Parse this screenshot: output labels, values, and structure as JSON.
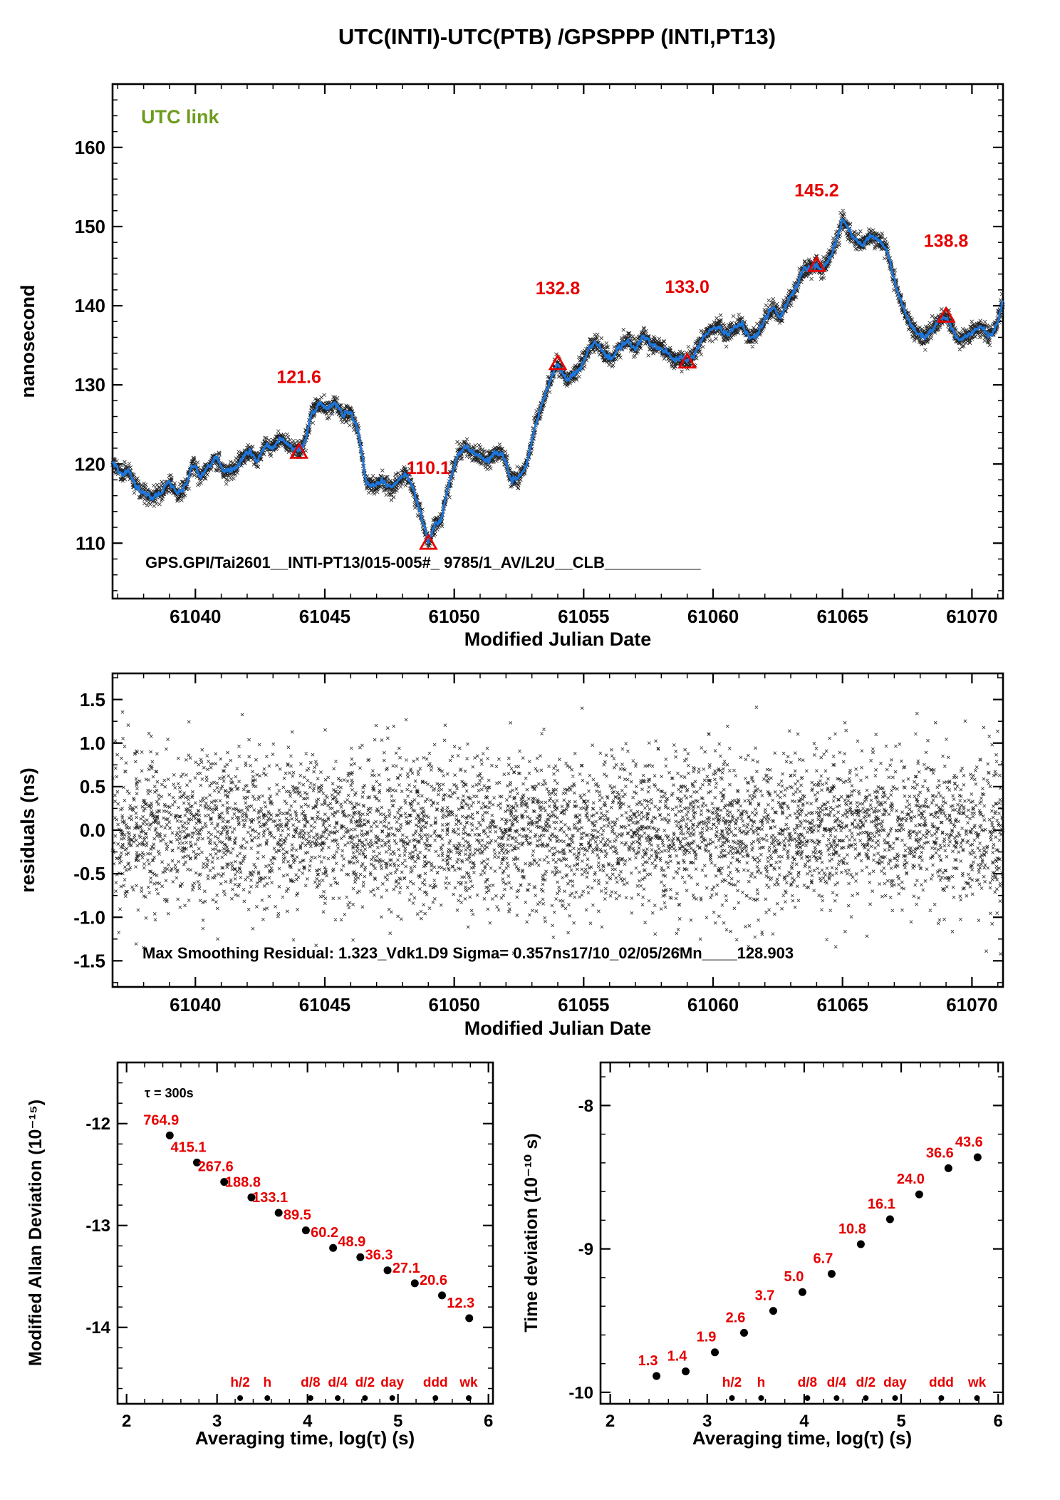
{
  "title": "UTC(INTI)-UTC(PTB)  /GPSPPP  (INTI,PT13)",
  "colors": {
    "line_blue": "#1b76dd",
    "marker_black": "#222222",
    "accent_red": "#e60000",
    "link_green": "#6e9c1f",
    "axis_black": "#000000"
  },
  "chart_data": [
    {
      "id": "utc-link",
      "type": "line",
      "corner_label": "UTC link",
      "ylabel": "nanosecond",
      "xlabel": "Modified Julian Date",
      "bottom_annotation": "GPS.GPI/Tai2601__INTI-PT13/015-005#_  9785/1_AV/L2U__CLB___________",
      "xlim": [
        61036.8,
        61071.2
      ],
      "ylim": [
        103,
        168
      ],
      "xticks": [
        61040,
        61045,
        61050,
        61055,
        61060,
        61065,
        61070
      ],
      "xtick_labels": [
        "61040",
        "61045",
        "61050",
        "61055",
        "61060",
        "61065",
        "61070"
      ],
      "yticks": [
        110,
        120,
        130,
        140,
        150,
        160
      ],
      "ytick_labels": [
        "110",
        "120",
        "130",
        "140",
        "150",
        "160"
      ],
      "calibration_markers": {
        "marker": "open-triangle",
        "color": "#e60000",
        "x": [
          61044,
          61049,
          61054,
          61059,
          61064,
          61069
        ],
        "y": [
          121.6,
          110.1,
          132.8,
          133.0,
          145.2,
          138.8
        ],
        "labels": [
          "121.6",
          "110.1",
          "132.8",
          "133.0",
          "145.2",
          "138.8"
        ]
      },
      "series_anchors": [
        [
          61036.8,
          120.3
        ],
        [
          61037.1,
          118.6
        ],
        [
          61037.4,
          119.3
        ],
        [
          61037.7,
          117.2
        ],
        [
          61038.0,
          116.3
        ],
        [
          61038.3,
          115.7
        ],
        [
          61038.7,
          116.4
        ],
        [
          61039.0,
          117.8
        ],
        [
          61039.3,
          116.2
        ],
        [
          61039.6,
          117.0
        ],
        [
          61039.9,
          120.2
        ],
        [
          61040.2,
          118.4
        ],
        [
          61040.5,
          119.6
        ],
        [
          61040.8,
          120.9
        ],
        [
          61041.1,
          119.0
        ],
        [
          61041.5,
          119.3
        ],
        [
          61041.8,
          120.6
        ],
        [
          61042.1,
          121.7
        ],
        [
          61042.4,
          120.4
        ],
        [
          61042.7,
          122.4
        ],
        [
          61043.0,
          122.0
        ],
        [
          61043.3,
          123.3
        ],
        [
          61043.6,
          122.2
        ],
        [
          61043.9,
          121.9
        ],
        [
          61044.0,
          121.6
        ],
        [
          61044.2,
          122.3
        ],
        [
          61044.5,
          126.5
        ],
        [
          61044.8,
          127.6
        ],
        [
          61045.1,
          127.0
        ],
        [
          61045.4,
          127.7
        ],
        [
          61045.7,
          126.2
        ],
        [
          61046.0,
          126.6
        ],
        [
          61046.3,
          124.0
        ],
        [
          61046.6,
          117.6
        ],
        [
          61046.9,
          117.2
        ],
        [
          61047.2,
          117.9
        ],
        [
          61047.5,
          117.1
        ],
        [
          61047.8,
          117.6
        ],
        [
          61048.1,
          118.9
        ],
        [
          61048.4,
          117.0
        ],
        [
          61048.7,
          113.8
        ],
        [
          61049.0,
          110.1
        ],
        [
          61049.2,
          112.0
        ],
        [
          61049.5,
          113.0
        ],
        [
          61049.8,
          117.5
        ],
        [
          61050.1,
          120.8
        ],
        [
          61050.4,
          122.3
        ],
        [
          61050.7,
          121.4
        ],
        [
          61051.0,
          121.0
        ],
        [
          61051.3,
          120.4
        ],
        [
          61051.6,
          121.6
        ],
        [
          61051.9,
          121.2
        ],
        [
          61052.2,
          117.8
        ],
        [
          61052.5,
          118.3
        ],
        [
          61052.8,
          119.8
        ],
        [
          61053.1,
          124.5
        ],
        [
          61053.5,
          128.6
        ],
        [
          61053.8,
          131.4
        ],
        [
          61054.0,
          132.8
        ],
        [
          61054.3,
          130.6
        ],
        [
          61054.6,
          131.2
        ],
        [
          61054.9,
          132.4
        ],
        [
          61055.2,
          134.6
        ],
        [
          61055.5,
          135.4
        ],
        [
          61055.8,
          133.9
        ],
        [
          61056.1,
          133.4
        ],
        [
          61056.4,
          134.8
        ],
        [
          61056.7,
          135.6
        ],
        [
          61057.0,
          134.4
        ],
        [
          61057.3,
          136.4
        ],
        [
          61057.6,
          135.1
        ],
        [
          61057.9,
          134.8
        ],
        [
          61058.2,
          134.2
        ],
        [
          61058.5,
          133.1
        ],
        [
          61058.8,
          133.4
        ],
        [
          61059.0,
          133.0
        ],
        [
          61059.3,
          133.8
        ],
        [
          61059.6,
          135.9
        ],
        [
          61059.9,
          136.9
        ],
        [
          61060.2,
          137.4
        ],
        [
          61060.5,
          136.4
        ],
        [
          61060.8,
          137.1
        ],
        [
          61061.1,
          137.8
        ],
        [
          61061.4,
          135.9
        ],
        [
          61061.7,
          136.3
        ],
        [
          61062.0,
          138.3
        ],
        [
          61062.3,
          139.9
        ],
        [
          61062.6,
          138.4
        ],
        [
          61062.9,
          140.7
        ],
        [
          61063.2,
          142.2
        ],
        [
          61063.5,
          144.6
        ],
        [
          61063.8,
          144.9
        ],
        [
          61064.0,
          145.2
        ],
        [
          61064.2,
          144.3
        ],
        [
          61064.5,
          146.0
        ],
        [
          61064.8,
          148.6
        ],
        [
          61065.0,
          150.9
        ],
        [
          61065.2,
          149.8
        ],
        [
          61065.5,
          148.3
        ],
        [
          61065.8,
          147.6
        ],
        [
          61066.1,
          149.0
        ],
        [
          61066.4,
          148.2
        ],
        [
          61066.7,
          147.3
        ],
        [
          61067.0,
          143.2
        ],
        [
          61067.3,
          140.0
        ],
        [
          61067.6,
          137.8
        ],
        [
          61067.9,
          136.4
        ],
        [
          61068.2,
          136.0
        ],
        [
          61068.5,
          137.2
        ],
        [
          61068.8,
          138.4
        ],
        [
          61069.0,
          138.8
        ],
        [
          61069.2,
          137.4
        ],
        [
          61069.5,
          135.6
        ],
        [
          61069.8,
          136.1
        ],
        [
          61070.1,
          136.8
        ],
        [
          61070.4,
          137.2
        ],
        [
          61070.7,
          136.1
        ],
        [
          61071.0,
          137.9
        ],
        [
          61071.2,
          140.8
        ]
      ]
    },
    {
      "id": "residuals",
      "type": "scatter",
      "ylabel": "residuals (ns)",
      "xlabel": "Modified Julian Date",
      "annotation": "Max Smoothing Residual: 1.323_Vdk1.D9  Sigma= 0.357ns17/10_02/05/26Mn____128.903",
      "xlim": [
        61036.8,
        61071.2
      ],
      "ylim": [
        -1.8,
        1.8
      ],
      "xticks": [
        61040,
        61045,
        61050,
        61055,
        61060,
        61065,
        61070
      ],
      "xtick_labels": [
        "61040",
        "61045",
        "61050",
        "61055",
        "61060",
        "61065",
        "61070"
      ],
      "yticks": [
        -1.5,
        -1.0,
        -0.5,
        0.0,
        0.5,
        1.0,
        1.5
      ],
      "ytick_labels": [
        "-1.5",
        "-1.0",
        "-0.5",
        "0.0",
        "0.5",
        "1.0",
        "1.5"
      ],
      "n_points": 5200,
      "visual_sigma": 0.44,
      "clip": 1.45
    },
    {
      "id": "madev",
      "type": "scatter",
      "ylabel": "Modified Allan Deviation (10⁻¹⁵)",
      "xlabel": "Averaging time, log(τ) (s)",
      "tau_note": "τ = 300s",
      "xlim": [
        1.9,
        6.05
      ],
      "ylim": [
        -14.75,
        -11.4
      ],
      "xticks": [
        2,
        3,
        4,
        5,
        6
      ],
      "xtick_labels": [
        "2",
        "3",
        "4",
        "5",
        "6"
      ],
      "yticks": [
        -12,
        -13,
        -14
      ],
      "ytick_labels": [
        "-12",
        "-13",
        "-14"
      ],
      "x_log_tau": [
        2.477,
        2.778,
        3.079,
        3.38,
        3.681,
        3.982,
        4.283,
        4.584,
        4.885,
        5.186,
        5.487,
        5.788
      ],
      "values_1e15": [
        764.9,
        415.1,
        267.6,
        188.8,
        133.1,
        89.5,
        60.2,
        48.9,
        36.3,
        27.1,
        20.6,
        12.3
      ],
      "value_labels": [
        "764.9",
        "415.1",
        "267.6",
        "188.8",
        "133.1",
        "89.5",
        "60.2",
        "48.9",
        "36.3",
        "27.1",
        "20.6",
        "12.3"
      ],
      "y_log": [
        -12.116,
        -12.382,
        -12.572,
        -12.724,
        -12.876,
        -13.048,
        -13.22,
        -13.311,
        -13.44,
        -13.567,
        -13.686,
        -13.91
      ],
      "timescale": {
        "labels": [
          "h/2",
          "h",
          "d/8",
          "d/4",
          "d/2",
          "day",
          "ddd",
          "wk"
        ],
        "x_log": [
          3.255,
          3.556,
          4.033,
          4.334,
          4.635,
          4.937,
          5.414,
          5.782
        ]
      }
    },
    {
      "id": "tdev",
      "type": "scatter",
      "ylabel": "Time deviation (10⁻¹⁰ s)",
      "xlabel": "Averaging time, log(τ) (s)",
      "xlim": [
        1.9,
        6.05
      ],
      "ylim": [
        -10.08,
        -7.7
      ],
      "xticks": [
        2,
        3,
        4,
        5,
        6
      ],
      "xtick_labels": [
        "2",
        "3",
        "4",
        "5",
        "6"
      ],
      "yticks": [
        -8,
        -9,
        -10
      ],
      "ytick_labels": [
        "-8",
        "-9",
        "-10"
      ],
      "x_log_tau": [
        2.477,
        2.778,
        3.079,
        3.38,
        3.681,
        3.982,
        4.283,
        4.584,
        4.885,
        5.186,
        5.487,
        5.788
      ],
      "values_1e10": [
        1.3,
        1.4,
        1.9,
        2.6,
        3.7,
        5.0,
        6.7,
        10.8,
        16.1,
        24.0,
        36.6,
        43.6
      ],
      "value_labels": [
        "1.3",
        "1.4",
        "1.9",
        "2.6",
        "3.7",
        "5.0",
        "6.7",
        "10.8",
        "16.1",
        "24.0",
        "36.6",
        "43.6"
      ],
      "y_log": [
        -9.886,
        -9.854,
        -9.721,
        -9.585,
        -9.432,
        -9.301,
        -9.174,
        -8.967,
        -8.793,
        -8.62,
        -8.437,
        -8.361
      ],
      "timescale": {
        "labels": [
          "h/2",
          "h",
          "d/8",
          "d/4",
          "d/2",
          "day",
          "ddd",
          "wk"
        ],
        "x_log": [
          3.255,
          3.556,
          4.033,
          4.334,
          4.635,
          4.937,
          5.414,
          5.782
        ]
      }
    }
  ]
}
